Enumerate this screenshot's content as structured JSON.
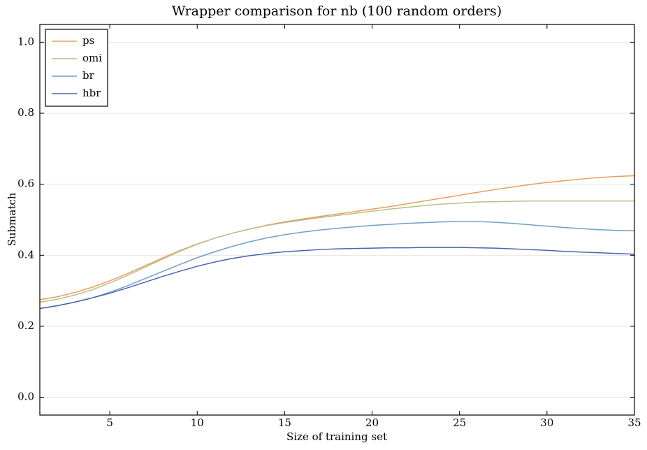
{
  "chart_data": {
    "type": "line",
    "title": "Wrapper comparison for nb (100 random orders)",
    "x_label": "Size of training set",
    "y_label": "Submatch",
    "x": [
      1,
      2,
      3,
      4,
      5,
      6,
      7,
      8,
      9,
      10,
      11,
      12,
      13,
      14,
      15,
      16,
      17,
      18,
      19,
      20,
      21,
      22,
      23,
      24,
      25,
      26,
      27,
      28,
      29,
      30,
      31,
      32,
      33,
      34,
      35
    ],
    "series": [
      {
        "name": "ps",
        "color": "#ee9a5b",
        "values": [
          0.275,
          0.283,
          0.295,
          0.31,
          0.328,
          0.348,
          0.37,
          0.392,
          0.413,
          0.432,
          0.448,
          0.462,
          0.474,
          0.485,
          0.494,
          0.502,
          0.509,
          0.516,
          0.523,
          0.53,
          0.537,
          0.545,
          0.553,
          0.561,
          0.569,
          0.577,
          0.585,
          0.592,
          0.599,
          0.605,
          0.61,
          0.615,
          0.619,
          0.622,
          0.624
        ]
      },
      {
        "name": "omi",
        "color": "#b5c18a",
        "values": [
          0.268,
          0.276,
          0.288,
          0.303,
          0.322,
          0.343,
          0.366,
          0.389,
          0.411,
          0.431,
          0.448,
          0.462,
          0.474,
          0.484,
          0.492,
          0.499,
          0.506,
          0.512,
          0.518,
          0.524,
          0.53,
          0.535,
          0.54,
          0.544,
          0.547,
          0.55,
          0.551,
          0.552,
          0.553,
          0.553,
          0.553,
          0.553,
          0.553,
          0.553,
          0.553
        ]
      },
      {
        "name": "br",
        "color": "#6fa0c8",
        "values": [
          0.25,
          0.258,
          0.268,
          0.28,
          0.296,
          0.314,
          0.334,
          0.354,
          0.374,
          0.393,
          0.41,
          0.425,
          0.438,
          0.449,
          0.458,
          0.465,
          0.471,
          0.476,
          0.48,
          0.484,
          0.487,
          0.49,
          0.492,
          0.494,
          0.495,
          0.495,
          0.493,
          0.49,
          0.486,
          0.482,
          0.478,
          0.475,
          0.472,
          0.47,
          0.469
        ]
      },
      {
        "name": "hbr",
        "color": "#4a63b0",
        "values": [
          0.25,
          0.258,
          0.268,
          0.28,
          0.293,
          0.308,
          0.324,
          0.34,
          0.355,
          0.369,
          0.381,
          0.391,
          0.399,
          0.405,
          0.41,
          0.413,
          0.416,
          0.418,
          0.419,
          0.42,
          0.421,
          0.421,
          0.422,
          0.422,
          0.422,
          0.421,
          0.42,
          0.418,
          0.416,
          0.414,
          0.411,
          0.409,
          0.407,
          0.405,
          0.403
        ]
      }
    ],
    "xlim": [
      1,
      35
    ],
    "xticks": [
      5,
      10,
      15,
      20,
      25,
      30,
      35
    ],
    "ylim": [
      -0.05,
      1.05
    ],
    "yticks": [
      {
        "value": 0,
        "label": "0.0"
      },
      0.2,
      0.4,
      0.6,
      0.8,
      {
        "value": 1,
        "label": "1.0"
      }
    ],
    "grid": true,
    "legend": "upper left"
  }
}
